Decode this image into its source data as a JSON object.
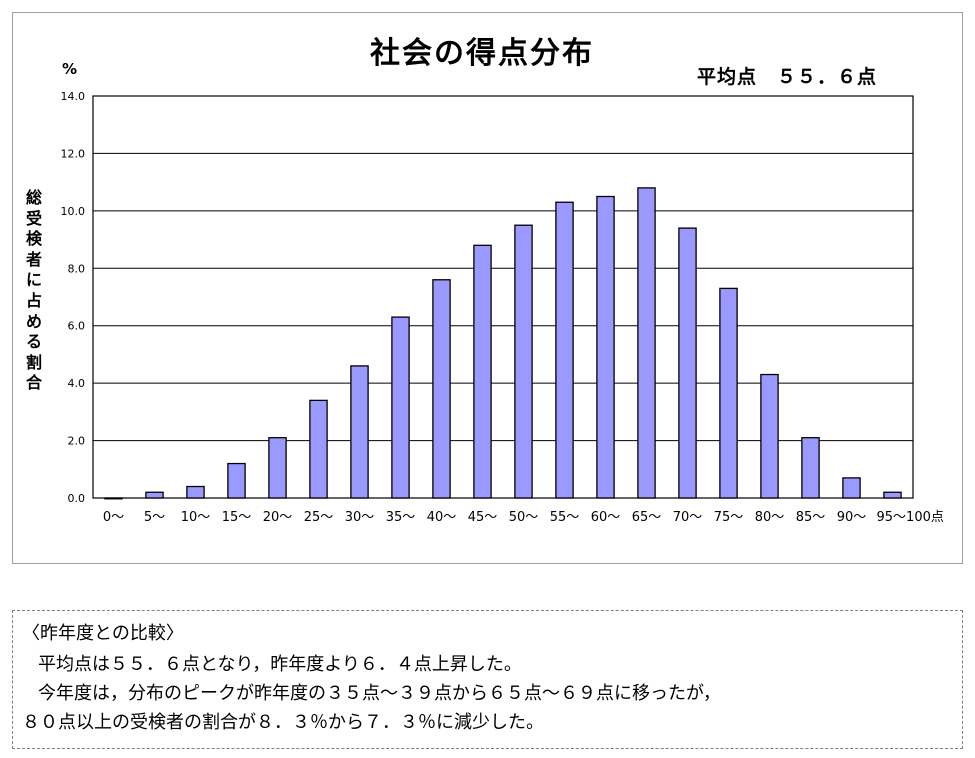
{
  "chart_data": {
    "type": "bar",
    "title": "社会の得点分布",
    "average_label": "平均点　５５．６点",
    "unit_label": "%",
    "ylabel": "総受検者に占める割合",
    "xlabel": "",
    "ylim": [
      0,
      14
    ],
    "yticks": [
      "0.0",
      "2.0",
      "4.0",
      "6.0",
      "8.0",
      "10.0",
      "12.0",
      "14.0"
    ],
    "grid": true,
    "legend": "none",
    "bar_color": "#9999ff",
    "categories": [
      "0～",
      "5～",
      "10～",
      "15～",
      "20～",
      "25～",
      "30～",
      "35～",
      "40～",
      "45～",
      "50～",
      "55～",
      "60～",
      "65～",
      "70～",
      "75～",
      "80～",
      "85～",
      "90～",
      "95～100点"
    ],
    "values": [
      0.0,
      0.2,
      0.4,
      1.2,
      2.1,
      3.4,
      4.6,
      6.3,
      7.6,
      8.8,
      9.5,
      10.3,
      10.5,
      10.8,
      9.4,
      7.3,
      4.3,
      2.1,
      0.7,
      0.2
    ]
  },
  "note": {
    "title": "〈昨年度との比較〉",
    "lines": [
      "平均点は５５．６点となり，昨年度より６．４点上昇した。",
      "今年度は，分布のピークが昨年度の３５点～３９点から６５点～６９点に移ったが，",
      "８０点以上の受検者の割合が８．３％から７．３％に減少した。"
    ]
  }
}
